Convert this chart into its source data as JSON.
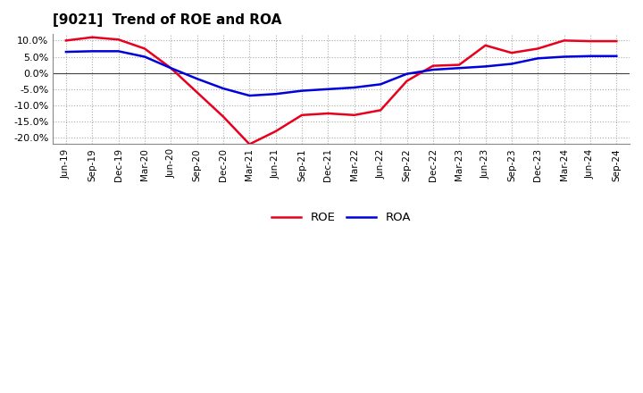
{
  "title": "[9021]  Trend of ROE and ROA",
  "x_labels": [
    "Jun-19",
    "Sep-19",
    "Dec-19",
    "Mar-20",
    "Jun-20",
    "Sep-20",
    "Dec-20",
    "Mar-21",
    "Jun-21",
    "Sep-21",
    "Dec-21",
    "Mar-22",
    "Jun-22",
    "Sep-22",
    "Dec-22",
    "Mar-23",
    "Jun-23",
    "Sep-23",
    "Dec-23",
    "Mar-24",
    "Jun-24",
    "Sep-24"
  ],
  "roe": [
    10.0,
    11.0,
    10.3,
    7.5,
    1.5,
    -6.0,
    -13.5,
    -22.0,
    -18.0,
    -13.0,
    -12.5,
    -13.0,
    -11.5,
    -2.5,
    2.2,
    2.5,
    8.5,
    6.2,
    7.5,
    10.0,
    9.8,
    9.8
  ],
  "roa": [
    6.5,
    6.7,
    6.7,
    5.0,
    1.5,
    -1.8,
    -4.8,
    -7.0,
    -6.5,
    -5.5,
    -5.0,
    -4.5,
    -3.5,
    -0.3,
    1.0,
    1.5,
    2.0,
    2.8,
    4.5,
    5.0,
    5.2,
    5.2
  ],
  "roe_color": "#e8001c",
  "roa_color": "#0000dd",
  "ylim": [
    -22,
    12
  ],
  "yticks": [
    -20.0,
    -15.0,
    -10.0,
    -5.0,
    0.0,
    5.0,
    10.0
  ],
  "background_color": "#ffffff",
  "grid_color": "#aaaaaa",
  "line_width": 1.8,
  "legend_labels": [
    "ROE",
    "ROA"
  ],
  "title_fontsize": 11,
  "tick_fontsize": 7.5
}
